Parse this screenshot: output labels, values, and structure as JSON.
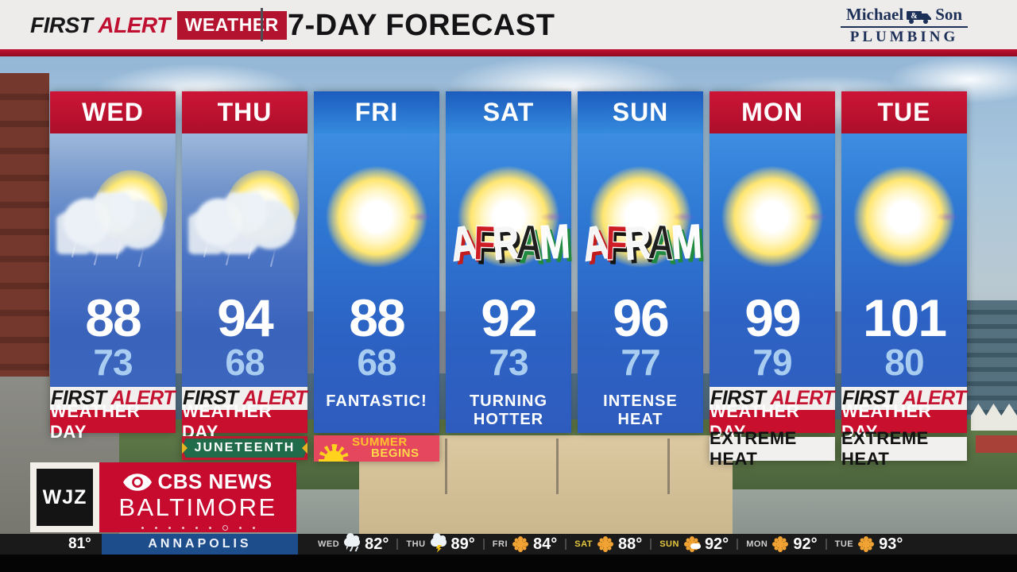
{
  "header": {
    "brand_first": "FIRST",
    "brand_alert": "ALERT",
    "brand_weather": "WEATHER",
    "title": "7-DAY FORECAST",
    "sponsor_name_left": "Michael",
    "sponsor_amp": "&",
    "sponsor_name_right": "Son",
    "sponsor_line2": "PLUMBING"
  },
  "forecast": {
    "days": [
      {
        "label": "WED",
        "high": "88",
        "low": "73",
        "icon": "sun-behind-rain-cloud",
        "badge_first": "FIRST",
        "badge_alert": "ALERT",
        "badge_line2": "WEATHER DAY"
      },
      {
        "label": "THU",
        "high": "94",
        "low": "68",
        "icon": "sun-behind-rain-cloud",
        "badge_first": "FIRST",
        "badge_alert": "ALERT",
        "badge_line2": "WEATHER DAY",
        "banner": "JUNETEENTH"
      },
      {
        "label": "FRI",
        "high": "88",
        "low": "68",
        "icon": "sunny",
        "caption": "FANTASTIC!",
        "banner_line1": "SUMMER",
        "banner_line2": "BEGINS"
      },
      {
        "label": "SAT",
        "high": "92",
        "low": "73",
        "icon": "sunny",
        "caption": "TURNING HOTTER",
        "overlay": "AFRAM"
      },
      {
        "label": "SUN",
        "high": "96",
        "low": "77",
        "icon": "sunny",
        "caption": "INTENSE HEAT",
        "overlay": "AFRAM"
      },
      {
        "label": "MON",
        "high": "99",
        "low": "79",
        "icon": "sunny",
        "badge_first": "FIRST",
        "badge_alert": "ALERT",
        "badge_line2": "WEATHER DAY",
        "extra": "EXTREME HEAT"
      },
      {
        "label": "TUE",
        "high": "101",
        "low": "80",
        "icon": "sunny",
        "badge_first": "FIRST",
        "badge_alert": "ALERT",
        "badge_line2": "WEATHER DAY",
        "extra": "EXTREME HEAT"
      }
    ]
  },
  "station": {
    "call_letters": "WJZ",
    "network": "CBS NEWS",
    "city": "BALTIMORE"
  },
  "ticker": {
    "current_temp": "81°",
    "location": "ANNAPOLIS",
    "items": [
      {
        "day": "WED",
        "temp": "82°",
        "icon": "rain-cloud"
      },
      {
        "day": "THU",
        "temp": "89°",
        "icon": "storm-cloud"
      },
      {
        "day": "FRI",
        "temp": "84°",
        "icon": "sun"
      },
      {
        "day": "SAT",
        "temp": "88°",
        "icon": "sun"
      },
      {
        "day": "SUN",
        "temp": "92°",
        "icon": "sun-with-cloud"
      },
      {
        "day": "MON",
        "temp": "92°",
        "icon": "sun"
      },
      {
        "day": "TUE",
        "temp": "93°",
        "icon": "sun"
      }
    ]
  },
  "colors": {
    "brand_red": "#c8102e",
    "header_blue": "#2f7fd8",
    "column_blue": "#2e6ac8",
    "low_temp_blue": "#a9cdf1",
    "juneteenth_green": "#1f6b4a",
    "summer_banner_pink": "#e5485e",
    "ticker_location_blue": "#1e4d8c",
    "weekend_label_yellow": "#e6c93e"
  }
}
